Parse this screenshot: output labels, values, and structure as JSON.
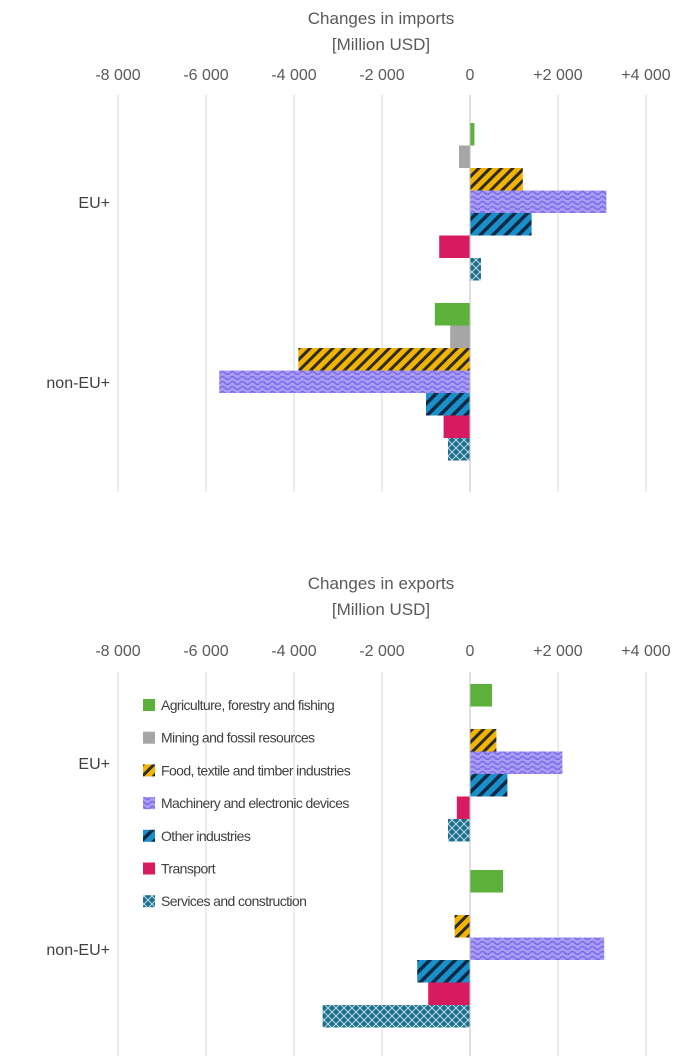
{
  "colors": {
    "agriculture": "#5bb13a",
    "mining": "#a6a6a6",
    "food": "#f2b400",
    "food_stripe": "#2b2b2b",
    "machinery": "#a99df2",
    "machinery_wave": "#7b68ee",
    "other": "#1b8fc9",
    "other_stripe": "#0d2a44",
    "transport": "#d81b60",
    "services": "#1f6f8b",
    "gridline": "#d9d9d9",
    "text": "#595959"
  },
  "legend": {
    "items": [
      {
        "label": "Agriculture, forestry and fishing",
        "icon": "solid-square"
      },
      {
        "label": "Mining and fossil resources",
        "icon": "solid-square"
      },
      {
        "label": "Food, textile and timber industries",
        "icon": "diagonal-stripe-square"
      },
      {
        "label": "Machinery and electronic devices",
        "icon": "wave-pattern-square"
      },
      {
        "label": "Other industries",
        "icon": "diagonal-stripe-square"
      },
      {
        "label": "Transport",
        "icon": "solid-square"
      },
      {
        "label": "Services and construction",
        "icon": "crosshatch-square"
      }
    ]
  },
  "chart_data": [
    {
      "type": "bar",
      "orientation": "horizontal",
      "title": [
        "Changes in imports",
        "[Million USD]"
      ],
      "xlim": [
        -8000,
        4000
      ],
      "x_ticks": [
        "-8 000",
        "-6 000",
        "-4 000",
        "-2 000",
        "0",
        "+2 000",
        "+4 000"
      ],
      "grid": true,
      "categories": [
        "EU+",
        "non-EU+"
      ],
      "series": [
        {
          "name": "Agriculture, forestry and fishing",
          "values": [
            100,
            -800
          ]
        },
        {
          "name": "Mining and fossil resources",
          "values": [
            -250,
            -450
          ]
        },
        {
          "name": "Food, textile and timber industries",
          "values": [
            1200,
            -3900
          ]
        },
        {
          "name": "Machinery and electronic devices",
          "values": [
            3100,
            -5700
          ]
        },
        {
          "name": "Other industries",
          "values": [
            1400,
            -1000
          ]
        },
        {
          "name": "Transport",
          "values": [
            -700,
            -600
          ]
        },
        {
          "name": "Services and construction",
          "values": [
            250,
            -500
          ]
        }
      ]
    },
    {
      "type": "bar",
      "orientation": "horizontal",
      "title": [
        "Changes in exports",
        "[Million USD]"
      ],
      "xlim": [
        -8000,
        4000
      ],
      "x_ticks": [
        "-8 000",
        "-6 000",
        "-4 000",
        "-2 000",
        "0",
        "+2 000",
        "+4 000"
      ],
      "grid": true,
      "legend_position": "left",
      "categories": [
        "EU+",
        "non-EU+"
      ],
      "series": [
        {
          "name": "Agriculture, forestry and fishing",
          "values": [
            500,
            750
          ]
        },
        {
          "name": "Mining and fossil resources",
          "values": [
            0,
            0
          ]
        },
        {
          "name": "Food, textile and timber industries",
          "values": [
            600,
            -350
          ]
        },
        {
          "name": "Machinery and electronic devices",
          "values": [
            2100,
            3050
          ]
        },
        {
          "name": "Other industries",
          "values": [
            850,
            -1200
          ]
        },
        {
          "name": "Transport",
          "values": [
            -300,
            -950
          ]
        },
        {
          "name": "Services and construction",
          "values": [
            -500,
            -3350
          ]
        }
      ]
    }
  ]
}
